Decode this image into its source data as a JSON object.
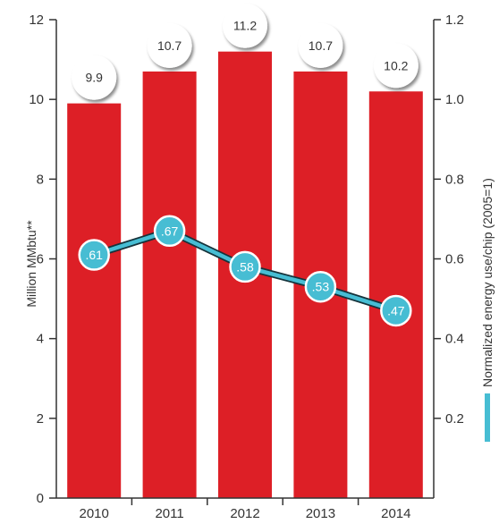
{
  "chart_data": {
    "type": "bar",
    "categories": [
      "2010",
      "2011",
      "2012",
      "2013",
      "2014"
    ],
    "series": [
      {
        "values": [
          9.9,
          10.7,
          11.2,
          10.7,
          10.2
        ],
        "labels": [
          "9.9",
          "10.7",
          "11.2",
          "10.7",
          "10.2"
        ],
        "axis": "left",
        "color": "#dd1f26"
      },
      {
        "type": "line",
        "values": [
          0.61,
          0.67,
          0.58,
          0.53,
          0.47
        ],
        "labels": [
          ".61",
          ".67",
          ".58",
          ".53",
          ".47"
        ],
        "axis": "right",
        "color": "#47bdd3"
      }
    ],
    "y_left": {
      "label": "Million MMbtu**",
      "range": [
        0,
        12
      ],
      "ticks": [
        "0",
        "2",
        "4",
        "6",
        "8",
        "10",
        "12"
      ]
    },
    "y_right": {
      "label": "Normalized energy use/chip (2005=1)",
      "range": [
        0,
        1.2
      ],
      "ticks": [
        "0.2",
        "0.4",
        "0.6",
        "0.8",
        "1.0",
        "1.2"
      ]
    },
    "legend": "right",
    "grid": false
  }
}
